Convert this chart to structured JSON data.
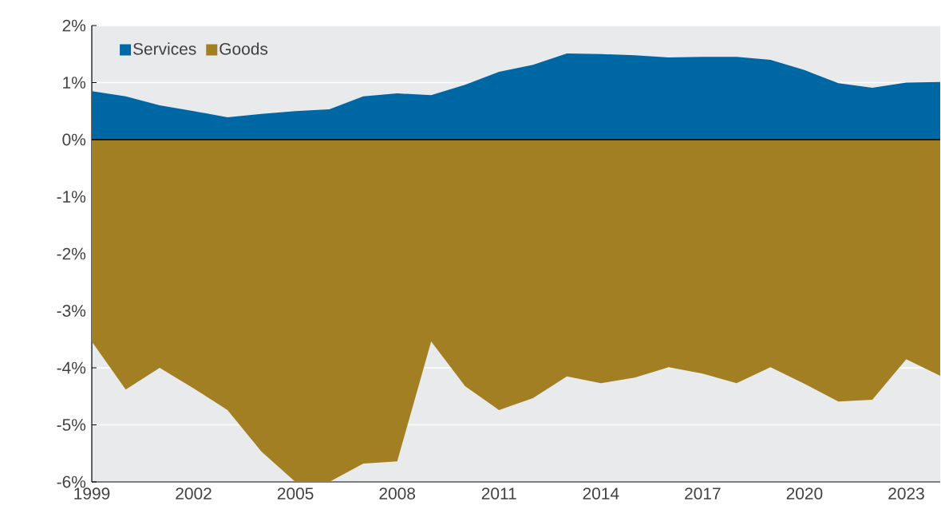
{
  "chart_data": {
    "type": "area",
    "x": [
      1999,
      2000,
      2001,
      2002,
      2003,
      2004,
      2005,
      2006,
      2007,
      2008,
      2009,
      2010,
      2011,
      2012,
      2013,
      2014,
      2015,
      2016,
      2017,
      2018,
      2019,
      2020,
      2021,
      2022,
      2023,
      2024
    ],
    "series": [
      {
        "name": "Services",
        "color": "#0067a5",
        "values": [
          0.85,
          0.76,
          0.6,
          0.5,
          0.39,
          0.45,
          0.5,
          0.53,
          0.76,
          0.81,
          0.78,
          0.96,
          1.19,
          1.31,
          1.51,
          1.5,
          1.48,
          1.44,
          1.45,
          1.45,
          1.4,
          1.22,
          0.99,
          0.91,
          1.0,
          1.01
        ]
      },
      {
        "name": "Goods",
        "color": "#a37f24",
        "values": [
          -3.54,
          -4.38,
          -4.0,
          -4.36,
          -4.74,
          -5.47,
          -6.0,
          -6.0,
          -5.68,
          -5.64,
          -3.54,
          -4.32,
          -4.74,
          -4.53,
          -4.15,
          -4.27,
          -4.17,
          -3.99,
          -4.1,
          -4.27,
          -3.99,
          -4.28,
          -4.59,
          -4.56,
          -3.85,
          -4.14
        ]
      }
    ],
    "xlim": [
      1999,
      2024
    ],
    "xticks": [
      1999,
      2002,
      2005,
      2008,
      2011,
      2014,
      2017,
      2020,
      2023
    ],
    "ylim": [
      -6,
      2
    ],
    "yticks": [
      {
        "value": -6,
        "label": "-6%"
      },
      {
        "value": -5,
        "label": "-5%"
      },
      {
        "value": -4,
        "label": "-4%"
      },
      {
        "value": -3,
        "label": "-3%"
      },
      {
        "value": -2,
        "label": "-2%"
      },
      {
        "value": -1,
        "label": "-1%"
      },
      {
        "value": 0,
        "label": "0%"
      },
      {
        "value": 1,
        "label": "1%"
      },
      {
        "value": 2,
        "label": "2%"
      }
    ],
    "grid": "y",
    "legend": "top left"
  }
}
